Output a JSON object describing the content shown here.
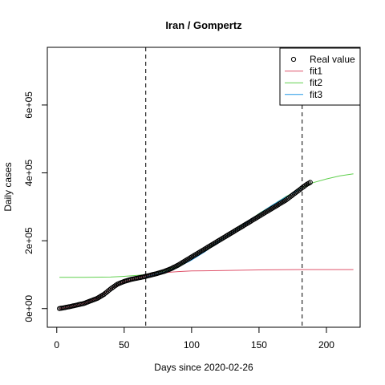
{
  "chart_data": {
    "type": "line",
    "title": "Iran / Gompertz",
    "xlabel": "Days since 2020-02-26",
    "ylabel": "Daily cases",
    "xlim": [
      -7,
      225
    ],
    "ylim": [
      -55000,
      770000
    ],
    "xticks": [
      0,
      50,
      100,
      150,
      200
    ],
    "xtick_labels": [
      "0",
      "50",
      "100",
      "150",
      "200"
    ],
    "yticks": [
      0,
      200000,
      400000,
      600000
    ],
    "ytick_labels": [
      "0e+00",
      "2e+05",
      "4e+05",
      "6e+05"
    ],
    "vlines": [
      66,
      182
    ],
    "legend": {
      "position": "top-right",
      "entries": [
        {
          "label": "Real value",
          "kind": "point",
          "color": "#000000"
        },
        {
          "label": "fit1",
          "kind": "line",
          "color": "#DF536B"
        },
        {
          "label": "fit2",
          "kind": "line",
          "color": "#61D04F"
        },
        {
          "label": "fit3",
          "kind": "line",
          "color": "#2297E6"
        }
      ]
    },
    "series": [
      {
        "name": "Real value",
        "kind": "points",
        "color": "#000000",
        "points": [
          [
            2,
            0
          ],
          [
            10,
            6000
          ],
          [
            20,
            15000
          ],
          [
            30,
            30000
          ],
          [
            35,
            42000
          ],
          [
            40,
            58000
          ],
          [
            45,
            72000
          ],
          [
            50,
            80000
          ],
          [
            55,
            86000
          ],
          [
            60,
            90000
          ],
          [
            66,
            95000
          ],
          [
            70,
            99000
          ],
          [
            75,
            104000
          ],
          [
            80,
            110000
          ],
          [
            85,
            118000
          ],
          [
            90,
            128000
          ],
          [
            95,
            140000
          ],
          [
            100,
            152000
          ],
          [
            105,
            164000
          ],
          [
            110,
            176000
          ],
          [
            115,
            188000
          ],
          [
            120,
            200000
          ],
          [
            125,
            212000
          ],
          [
            130,
            224000
          ],
          [
            135,
            236000
          ],
          [
            140,
            248000
          ],
          [
            145,
            260000
          ],
          [
            150,
            272000
          ],
          [
            155,
            284000
          ],
          [
            160,
            296000
          ],
          [
            165,
            308000
          ],
          [
            170,
            320000
          ],
          [
            175,
            335000
          ],
          [
            180,
            350000
          ],
          [
            185,
            365000
          ],
          [
            188,
            372000
          ]
        ]
      },
      {
        "name": "fit1",
        "kind": "line",
        "color": "#DF536B",
        "points": [
          [
            2,
            0
          ],
          [
            10,
            6000
          ],
          [
            20,
            15000
          ],
          [
            30,
            30000
          ],
          [
            40,
            58000
          ],
          [
            50,
            80000
          ],
          [
            60,
            90000
          ],
          [
            70,
            100000
          ],
          [
            80,
            106000
          ],
          [
            90,
            109000
          ],
          [
            100,
            111000
          ],
          [
            120,
            112000
          ],
          [
            150,
            114000
          ],
          [
            180,
            115000
          ],
          [
            200,
            115000
          ],
          [
            220,
            115000
          ]
        ]
      },
      {
        "name": "fit2",
        "kind": "line",
        "color": "#61D04F",
        "points": [
          [
            2,
            92000
          ],
          [
            20,
            92000
          ],
          [
            40,
            93000
          ],
          [
            50,
            95000
          ],
          [
            60,
            98000
          ],
          [
            66,
            100000
          ],
          [
            70,
            103000
          ],
          [
            80,
            111000
          ],
          [
            90,
            125000
          ],
          [
            100,
            145000
          ],
          [
            110,
            170000
          ],
          [
            120,
            198000
          ],
          [
            130,
            225000
          ],
          [
            140,
            252000
          ],
          [
            150,
            280000
          ],
          [
            160,
            305000
          ],
          [
            170,
            330000
          ],
          [
            180,
            352000
          ],
          [
            185,
            362000
          ],
          [
            190,
            371000
          ],
          [
            200,
            382000
          ],
          [
            210,
            391000
          ],
          [
            220,
            397000
          ]
        ]
      },
      {
        "name": "fit3",
        "kind": "line",
        "color": "#2297E6",
        "points": [
          [
            66,
            94000
          ],
          [
            70,
            98000
          ],
          [
            80,
            108000
          ],
          [
            90,
            122000
          ],
          [
            100,
            143000
          ],
          [
            110,
            168000
          ],
          [
            120,
            197000
          ],
          [
            130,
            224000
          ],
          [
            140,
            251000
          ],
          [
            150,
            279000
          ],
          [
            160,
            305000
          ],
          [
            170,
            329000
          ],
          [
            180,
            351000
          ],
          [
            182,
            355000
          ]
        ]
      }
    ]
  }
}
